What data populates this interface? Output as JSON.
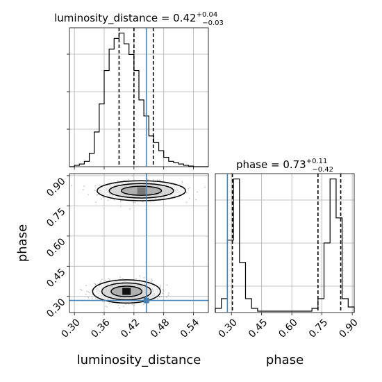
{
  "chart_data": {
    "type": "corner",
    "truth": {
      "luminosity_distance": 0.445,
      "phase": 0.28
    },
    "ld_hist": {
      "title_main": "luminosity_distance = 0.42",
      "title_sup": "+0.04",
      "title_sub": "−0.03",
      "bin_edges": [
        0.29,
        0.3,
        0.31,
        0.32,
        0.33,
        0.34,
        0.35,
        0.36,
        0.37,
        0.38,
        0.39,
        0.4,
        0.41,
        0.42,
        0.43,
        0.44,
        0.45,
        0.46,
        0.47,
        0.48,
        0.49,
        0.5,
        0.51,
        0.52,
        0.53,
        0.54,
        0.55,
        0.56,
        0.57
      ],
      "counts": [
        0.0,
        0.01,
        0.02,
        0.04,
        0.1,
        0.26,
        0.47,
        0.72,
        0.88,
        0.96,
        1.0,
        0.92,
        0.84,
        0.72,
        0.5,
        0.38,
        0.23,
        0.18,
        0.12,
        0.07,
        0.04,
        0.03,
        0.02,
        0.01,
        0.005,
        0.0,
        0.0,
        0.0
      ],
      "quantiles": [
        0.39,
        0.42,
        0.459
      ],
      "xlim": [
        0.29,
        0.57
      ]
    },
    "phase_hist": {
      "title_main": "phase = 0.73",
      "title_sup": "+0.11",
      "title_sub": "−0.42",
      "bin_edges": [
        0.22,
        0.25,
        0.28,
        0.31,
        0.34,
        0.37,
        0.4,
        0.43,
        0.46,
        0.49,
        0.52,
        0.55,
        0.58,
        0.61,
        0.64,
        0.67,
        0.7,
        0.73,
        0.76,
        0.79,
        0.82,
        0.85,
        0.88,
        0.91
      ],
      "counts": [
        0.03,
        0.1,
        0.52,
        0.96,
        0.36,
        0.1,
        0.03,
        0.01,
        0.01,
        0.01,
        0.01,
        0.01,
        0.01,
        0.01,
        0.01,
        0.01,
        0.03,
        0.1,
        0.5,
        0.96,
        0.68,
        0.1,
        0.04
      ],
      "quantiles": [
        0.305,
        0.73,
        0.843
      ],
      "xlim": [
        0.22,
        0.91
      ]
    },
    "joint": {
      "modes": [
        {
          "x": 0.435,
          "y": 0.825,
          "sx": 0.03,
          "sy": 0.03
        },
        {
          "x": 0.405,
          "y": 0.325,
          "sx": 0.023,
          "sy": 0.035
        }
      ],
      "xlim": [
        0.29,
        0.57
      ],
      "ylim": [
        0.22,
        0.91
      ]
    },
    "x_ticks_ld": [
      0.3,
      0.36,
      0.42,
      0.48,
      0.54
    ],
    "x_tick_labels_ld": [
      "0.30",
      "0.36",
      "0.42",
      "0.48",
      "0.54"
    ],
    "y_ticks_phase": [
      0.3,
      0.45,
      0.6,
      0.75,
      0.9
    ],
    "y_tick_labels_phase": [
      "0.30",
      "0.45",
      "0.60",
      "0.75",
      "0.90"
    ],
    "xlabel_left": "luminosity_distance",
    "xlabel_right": "phase",
    "ylabel": "phase",
    "colors": {
      "truth": "#4682b4",
      "hist": "#000000",
      "grid": "#b0b0b0",
      "density": "#555555"
    },
    "grid": true
  }
}
